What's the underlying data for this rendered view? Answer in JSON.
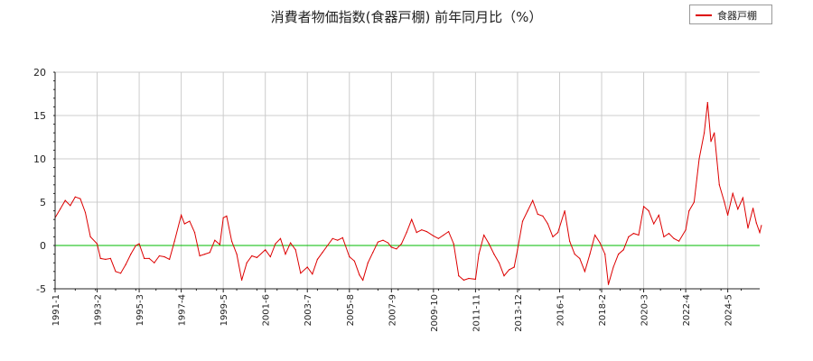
{
  "chart_data": {
    "type": "line",
    "title": "消費者物価指数(食器戸棚) 前年同月比（%）",
    "xlabel": "",
    "ylabel": "",
    "ylim": [
      -5,
      20
    ],
    "yticks": [
      -5,
      0,
      5,
      10,
      15,
      20
    ],
    "x_range": [
      "1991-01",
      "2025-12"
    ],
    "xtick_labels": [
      "1991-1",
      "1993-2",
      "1995-3",
      "1997-4",
      "1999-5",
      "2001-6",
      "2003-7",
      "2005-8",
      "2007-9",
      "2009-10",
      "2011-11",
      "2013-12",
      "2016-1",
      "2018-2",
      "2020-3",
      "2022-4",
      "2024-5"
    ],
    "grid": true,
    "legend_position": "top-right",
    "reference_line": {
      "y": 0,
      "color": "#00bb00"
    },
    "series": [
      {
        "name": "食器戸棚",
        "color": "#dd0000",
        "points": [
          [
            "1991-01",
            3.2
          ],
          [
            "1991-04",
            4.2
          ],
          [
            "1991-07",
            5.2
          ],
          [
            "1991-10",
            4.6
          ],
          [
            "1992-01",
            5.6
          ],
          [
            "1992-04",
            5.4
          ],
          [
            "1992-07",
            3.8
          ],
          [
            "1992-10",
            1.0
          ],
          [
            "1993-02",
            0.2
          ],
          [
            "1993-04",
            -1.5
          ],
          [
            "1993-07",
            -1.6
          ],
          [
            "1993-10",
            -1.5
          ],
          [
            "1994-01",
            -3.0
          ],
          [
            "1994-04",
            -3.2
          ],
          [
            "1994-07",
            -2.2
          ],
          [
            "1994-10",
            -1.0
          ],
          [
            "1995-01",
            0.0
          ],
          [
            "1995-03",
            0.2
          ],
          [
            "1995-06",
            -1.5
          ],
          [
            "1995-09",
            -1.5
          ],
          [
            "1995-12",
            -2.0
          ],
          [
            "1996-03",
            -1.2
          ],
          [
            "1996-06",
            -1.3
          ],
          [
            "1996-09",
            -1.6
          ],
          [
            "1996-12",
            0.5
          ],
          [
            "1997-04",
            3.5
          ],
          [
            "1997-06",
            2.5
          ],
          [
            "1997-09",
            2.8
          ],
          [
            "1997-12",
            1.5
          ],
          [
            "1998-03",
            -1.2
          ],
          [
            "1998-06",
            -1.0
          ],
          [
            "1998-09",
            -0.8
          ],
          [
            "1998-12",
            0.6
          ],
          [
            "1999-03",
            0.1
          ],
          [
            "1999-05",
            3.2
          ],
          [
            "1999-07",
            3.4
          ],
          [
            "1999-10",
            0.5
          ],
          [
            "2000-01",
            -1.0
          ],
          [
            "2000-04",
            -4.0
          ],
          [
            "2000-07",
            -2.0
          ],
          [
            "2000-10",
            -1.2
          ],
          [
            "2001-01",
            -1.4
          ],
          [
            "2001-06",
            -0.5
          ],
          [
            "2001-09",
            -1.3
          ],
          [
            "2001-12",
            0.2
          ],
          [
            "2002-03",
            0.8
          ],
          [
            "2002-06",
            -1.0
          ],
          [
            "2002-09",
            0.3
          ],
          [
            "2002-12",
            -0.5
          ],
          [
            "2003-03",
            -3.2
          ],
          [
            "2003-07",
            -2.5
          ],
          [
            "2003-10",
            -3.3
          ],
          [
            "2004-01",
            -1.6
          ],
          [
            "2004-04",
            -0.8
          ],
          [
            "2004-07",
            0.0
          ],
          [
            "2004-10",
            0.8
          ],
          [
            "2005-01",
            0.6
          ],
          [
            "2005-04",
            0.9
          ],
          [
            "2005-08",
            -1.3
          ],
          [
            "2005-11",
            -1.8
          ],
          [
            "2006-02",
            -3.4
          ],
          [
            "2006-04",
            -4.0
          ],
          [
            "2006-07",
            -2.0
          ],
          [
            "2006-10",
            -0.8
          ],
          [
            "2007-01",
            0.4
          ],
          [
            "2007-04",
            0.6
          ],
          [
            "2007-07",
            0.3
          ],
          [
            "2007-09",
            -0.2
          ],
          [
            "2007-12",
            -0.4
          ],
          [
            "2008-03",
            0.2
          ],
          [
            "2008-06",
            1.5
          ],
          [
            "2008-09",
            3.0
          ],
          [
            "2008-12",
            1.5
          ],
          [
            "2009-03",
            1.8
          ],
          [
            "2009-06",
            1.6
          ],
          [
            "2009-10",
            1.1
          ],
          [
            "2010-01",
            0.8
          ],
          [
            "2010-04",
            1.2
          ],
          [
            "2010-07",
            1.6
          ],
          [
            "2010-10",
            0.2
          ],
          [
            "2011-01",
            -3.5
          ],
          [
            "2011-04",
            -4.0
          ],
          [
            "2011-07",
            -3.8
          ],
          [
            "2011-11",
            -3.9
          ],
          [
            "2012-01",
            -1.0
          ],
          [
            "2012-04",
            1.2
          ],
          [
            "2012-07",
            0.2
          ],
          [
            "2012-10",
            -1.0
          ],
          [
            "2013-01",
            -2.0
          ],
          [
            "2013-04",
            -3.5
          ],
          [
            "2013-07",
            -2.8
          ],
          [
            "2013-10",
            -2.5
          ],
          [
            "2013-12",
            -0.5
          ],
          [
            "2014-03",
            2.8
          ],
          [
            "2014-06",
            4.0
          ],
          [
            "2014-09",
            5.2
          ],
          [
            "2014-12",
            3.6
          ],
          [
            "2015-03",
            3.4
          ],
          [
            "2015-06",
            2.5
          ],
          [
            "2015-09",
            1.0
          ],
          [
            "2015-12",
            1.5
          ],
          [
            "2016-04",
            4.0
          ],
          [
            "2016-07",
            0.5
          ],
          [
            "2016-10",
            -1.0
          ],
          [
            "2017-01",
            -1.5
          ],
          [
            "2017-04",
            -3.0
          ],
          [
            "2017-07",
            -1.0
          ],
          [
            "2017-10",
            1.2
          ],
          [
            "2018-01",
            0.3
          ],
          [
            "2018-04",
            -1.0
          ],
          [
            "2018-06",
            -4.5
          ],
          [
            "2018-09",
            -2.5
          ],
          [
            "2018-12",
            -1.0
          ],
          [
            "2019-03",
            -0.5
          ],
          [
            "2019-06",
            1.0
          ],
          [
            "2019-09",
            1.4
          ],
          [
            "2019-12",
            1.2
          ],
          [
            "2020-03",
            4.5
          ],
          [
            "2020-06",
            4.0
          ],
          [
            "2020-09",
            2.5
          ],
          [
            "2020-12",
            3.5
          ],
          [
            "2021-03",
            1.0
          ],
          [
            "2021-06",
            1.4
          ],
          [
            "2021-09",
            0.8
          ],
          [
            "2021-12",
            0.5
          ],
          [
            "2022-04",
            1.8
          ],
          [
            "2022-06",
            4.0
          ],
          [
            "2022-09",
            5.0
          ],
          [
            "2022-12",
            10.0
          ],
          [
            "2023-03",
            13.0
          ],
          [
            "2023-05",
            16.5
          ],
          [
            "2023-07",
            12.0
          ],
          [
            "2023-09",
            13.0
          ],
          [
            "2023-12",
            7.0
          ],
          [
            "2024-03",
            5.0
          ],
          [
            "2024-05",
            3.5
          ],
          [
            "2024-08",
            6.0
          ],
          [
            "2024-11",
            4.2
          ],
          [
            "2025-02",
            5.5
          ],
          [
            "2025-05",
            2.0
          ],
          [
            "2025-08",
            4.3
          ],
          [
            "2025-10",
            2.6
          ],
          [
            "2025-12",
            1.5
          ],
          [
            "2026-01",
            2.3
          ]
        ]
      }
    ]
  }
}
